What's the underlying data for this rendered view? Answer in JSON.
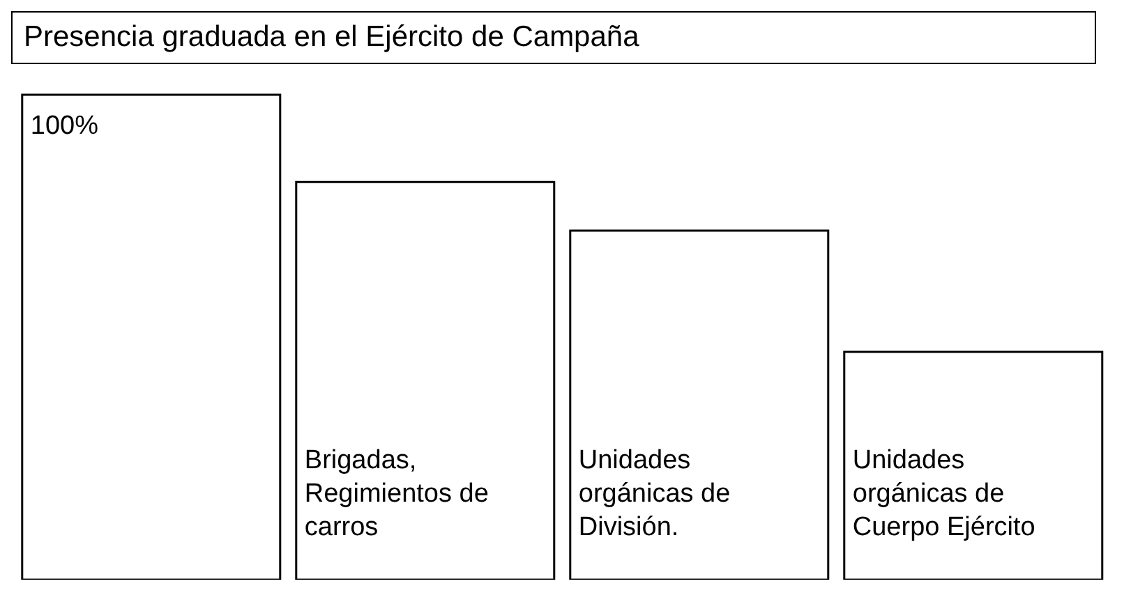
{
  "chart_data": {
    "type": "bar",
    "title": "Presencia graduada en el Ejército de Campaña",
    "categories": [
      null,
      "Brigadas, Regimientos de carros",
      "Unidades orgánicas de División.",
      "Unidades orgánicas de Cuerpo Ejército"
    ],
    "values": [
      100,
      82,
      72,
      47
    ],
    "value_labels": [
      "100%",
      null,
      null,
      null
    ],
    "color": "#ffffff"
  }
}
